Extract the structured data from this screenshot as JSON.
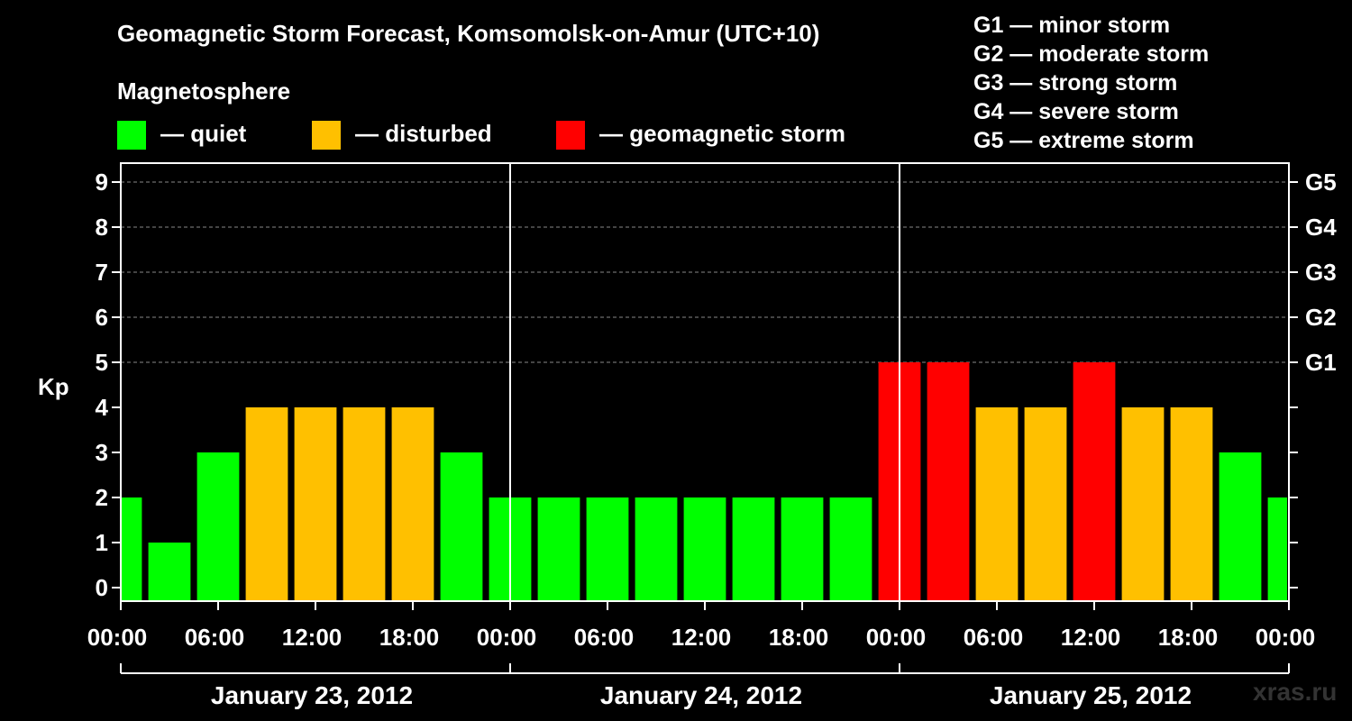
{
  "chart_data": {
    "type": "bar",
    "title": "Geomagnetic Storm Forecast, Komsomolsk-on-Amur (UTC+10)",
    "ylabel": "Kp",
    "ylim": [
      0,
      9
    ],
    "yticks": [
      "0",
      "1",
      "2",
      "3",
      "4",
      "5",
      "6",
      "7",
      "8",
      "9"
    ],
    "right_axis": [
      {
        "kp": 5,
        "label": "G1"
      },
      {
        "kp": 6,
        "label": "G2"
      },
      {
        "kp": 7,
        "label": "G3"
      },
      {
        "kp": 8,
        "label": "G4"
      },
      {
        "kp": 9,
        "label": "G5"
      }
    ],
    "xticks": [
      "00:00",
      "06:00",
      "12:00",
      "18:00",
      "00:00",
      "06:00",
      "12:00",
      "18:00",
      "00:00",
      "06:00",
      "12:00",
      "18:00",
      "00:00"
    ],
    "days": [
      "January 23, 2012",
      "January 24, 2012",
      "January 25, 2012"
    ],
    "interval_hours": 3,
    "values": [
      2,
      1,
      3,
      4,
      4,
      4,
      4,
      3,
      2,
      2,
      2,
      2,
      2,
      2,
      2,
      2,
      5,
      5,
      4,
      4,
      5,
      4,
      4,
      3,
      2
    ],
    "grid": true
  },
  "legend": {
    "heading": "Magnetosphere",
    "items": [
      {
        "label": "— quiet",
        "color": "#00ff00"
      },
      {
        "label": "— disturbed",
        "color": "#ffc000"
      },
      {
        "label": "— geomagnetic storm",
        "color": "#ff0000"
      }
    ]
  },
  "g_scale": [
    "G1 — minor storm",
    "G2 — moderate storm",
    "G3 — strong storm",
    "G4 — severe storm",
    "G5 — extreme storm"
  ],
  "watermark": "xras.ru",
  "colors": {
    "quiet": "#00ff00",
    "disturbed": "#ffc000",
    "storm": "#ff0000",
    "grid": "#888888"
  }
}
